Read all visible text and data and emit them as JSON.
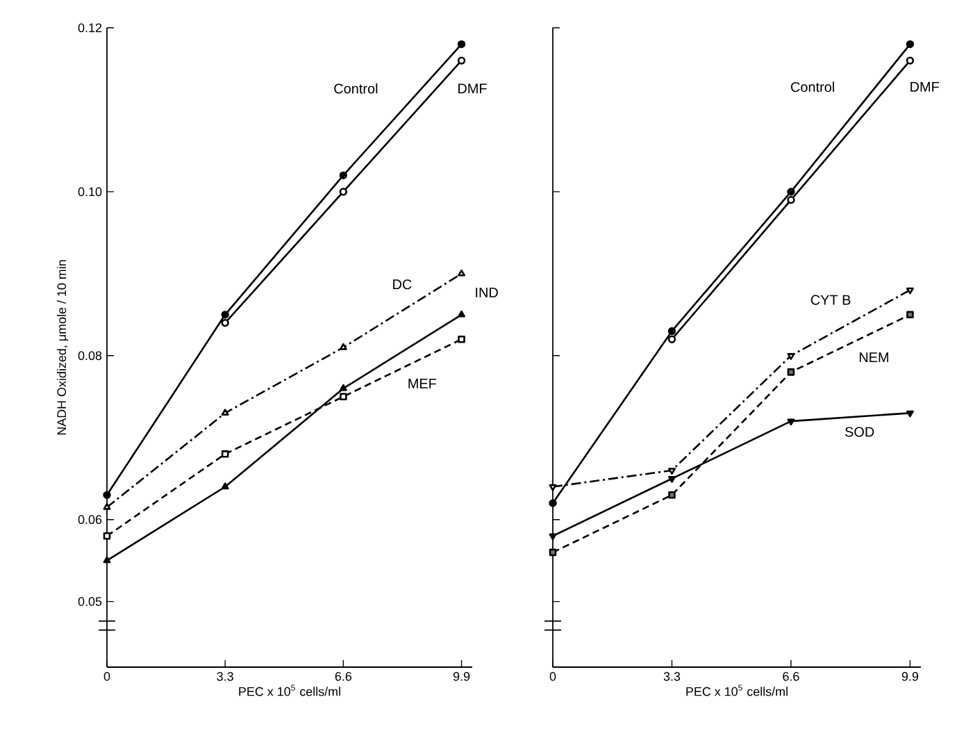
{
  "chart_data": [
    {
      "type": "line",
      "xlabel": "PEC x 10$^{5}$ cells/ml",
      "ylabel": "NADH Oxidized,  μmole / 10 min",
      "x": [
        0,
        3.3,
        6.6,
        9.9
      ],
      "xlim": [
        0,
        10.2
      ],
      "ylim": [
        0.042,
        0.12
      ],
      "xticks": [
        0,
        3.3,
        6.6,
        9.9
      ],
      "yticks": [
        {
          "value": 0.05,
          "label": "0.05"
        },
        {
          "value": 0.06,
          "label": "0.06"
        },
        {
          "value": 0.08,
          "label": "0.08"
        },
        {
          "value": 0.1,
          "label": "0.10"
        },
        {
          "value": 0.12,
          "label": "0.12"
        }
      ],
      "series": [
        {
          "name": "Control",
          "color": "#000000",
          "values": [
            0.063,
            0.085,
            0.102,
            0.118
          ],
          "line_style": "solid",
          "marker": "circle"
        },
        {
          "name": "DMF",
          "color": "#000000",
          "values": [
            null,
            0.084,
            0.1,
            0.116
          ],
          "line_style": "solid",
          "marker": "circle open"
        },
        {
          "name": "DC",
          "color": "#000000",
          "values": [
            0.0615,
            0.073,
            0.081,
            0.09
          ],
          "line_style": "dashdot",
          "marker": "triangle open"
        },
        {
          "name": "IND",
          "color": "#000000",
          "values": [
            0.055,
            0.064,
            0.076,
            0.085
          ],
          "line_style": "solid",
          "marker": "triangle"
        },
        {
          "name": "MEF",
          "color": "#000000",
          "values": [
            0.058,
            0.068,
            0.075,
            0.082
          ],
          "line_style": "dashed",
          "marker": "square open"
        }
      ]
    },
    {
      "type": "line",
      "xlabel": "PEC x 10$^{5}$ cells/ml",
      "x": [
        0,
        3.3,
        6.6,
        9.9
      ],
      "xlim": [
        0,
        10.2
      ],
      "ylim": [
        0.042,
        0.12
      ],
      "xticks": [
        0,
        3.3,
        6.6,
        9.9
      ],
      "yticks": [
        {
          "value": 0.05,
          "label": null
        },
        {
          "value": 0.06,
          "label": null
        },
        {
          "value": 0.08,
          "label": null
        },
        {
          "value": 0.1,
          "label": null
        },
        {
          "value": 0.12,
          "label": null
        }
      ],
      "tick_labels": "x",
      "series": [
        {
          "name": "Control",
          "color": "#000000",
          "values": [
            0.062,
            0.083,
            0.1,
            0.118
          ],
          "line_style": "solid",
          "marker": "circle"
        },
        {
          "name": "DMF",
          "color": "#000000",
          "values": [
            null,
            0.082,
            0.099,
            0.116
          ],
          "line_style": "solid",
          "marker": "circle open"
        },
        {
          "name": "CYT B",
          "color": "#000000",
          "values": [
            0.064,
            0.066,
            0.08,
            0.088
          ],
          "line_style": "dashdot",
          "marker": "triangle down open"
        },
        {
          "name": "NEM",
          "color": "#000000",
          "values": [
            0.056,
            0.063,
            0.078,
            0.085
          ],
          "line_style": "dashed",
          "marker": "square"
        },
        {
          "name": "SOD",
          "color": "#000000",
          "values": [
            0.058,
            0.065,
            0.072,
            0.073
          ],
          "line_style": "solid",
          "marker": "triangle down"
        }
      ]
    }
  ]
}
